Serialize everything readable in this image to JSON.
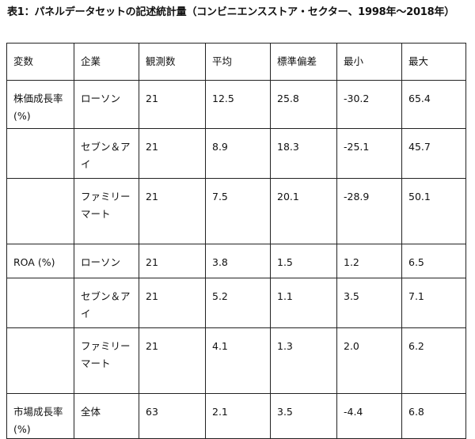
{
  "caption": "表1：パネルデータセットの記述統計量（コンビニエンスストア・セクター、1998年〜2018年）",
  "headers": [
    "変数",
    "企業",
    "観測数",
    "平均",
    "標準偏差",
    "最小",
    "最大"
  ],
  "groups": [
    {
      "variable": "株価成長率 (%)",
      "rows": [
        {
          "company": "ローソン",
          "n": "21",
          "mean": "12.5",
          "sd": "25.8",
          "min": "-30.2",
          "max": "65.4"
        },
        {
          "company": "セブン＆アイ",
          "n": "21",
          "mean": "8.9",
          "sd": "18.3",
          "min": "-25.1",
          "max": "45.7"
        },
        {
          "company": "ファミリーマート",
          "n": "21",
          "mean": "7.5",
          "sd": "20.1",
          "min": "-28.9",
          "max": "50.1"
        }
      ]
    },
    {
      "variable": "ROA (%)",
      "rows": [
        {
          "company": "ローソン",
          "n": "21",
          "mean": "3.8",
          "sd": "1.5",
          "min": "1.2",
          "max": "6.5"
        },
        {
          "company": "セブン＆アイ",
          "n": "21",
          "mean": "5.2",
          "sd": "1.1",
          "min": "3.5",
          "max": "7.1"
        },
        {
          "company": "ファミリーマート",
          "n": "21",
          "mean": "4.1",
          "sd": "1.3",
          "min": "2.0",
          "max": "6.2"
        }
      ]
    },
    {
      "variable": "市場成長率 (%)",
      "rows": [
        {
          "company": "全体",
          "n": "63",
          "mean": "2.1",
          "sd": "3.5",
          "min": "-4.4",
          "max": "6.8"
        }
      ]
    }
  ]
}
